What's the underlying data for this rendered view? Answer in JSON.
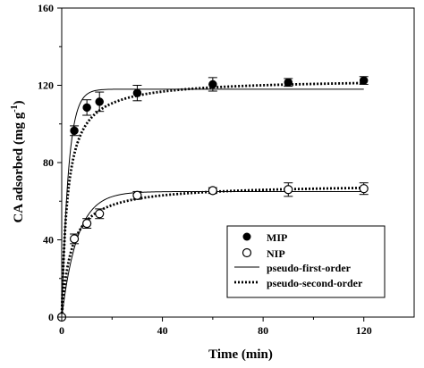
{
  "chart_data": {
    "type": "scatter",
    "title": "",
    "xlabel": "Time (min)",
    "ylabel": {
      "prefix": "CA adsorbed (mg g",
      "sup": "-1",
      "suffix": ")"
    },
    "xlim": [
      0,
      140
    ],
    "ylim": [
      0,
      160
    ],
    "xticks": [
      0,
      40,
      80,
      120
    ],
    "yticks": [
      0,
      40,
      80,
      120,
      160
    ],
    "grid": false,
    "legend_position": "bottom-right",
    "series": [
      {
        "name": "MIP",
        "marker": "filled-circle",
        "x": [
          0,
          5,
          10,
          15,
          30,
          60,
          90,
          120
        ],
        "y": [
          0,
          96.5,
          108.5,
          111.5,
          116,
          120.5,
          121.5,
          122.5
        ],
        "error": [
          0,
          2.5,
          4,
          5,
          4,
          3.5,
          2,
          2
        ]
      },
      {
        "name": "NIP",
        "marker": "open-circle",
        "x": [
          0,
          5,
          10,
          15,
          30,
          60,
          90,
          120
        ],
        "y": [
          0,
          40.5,
          48.5,
          53.5,
          63,
          65.5,
          66,
          66.5
        ],
        "error": [
          0,
          2.5,
          2.5,
          2.5,
          2,
          1.5,
          3.5,
          3
        ]
      }
    ],
    "fits": [
      {
        "name": "pseudo-first-order",
        "style": "solid",
        "curves": [
          {
            "qe": 118,
            "k": 0.38
          },
          {
            "qe": 65,
            "k": 0.16
          }
        ]
      },
      {
        "name": "pseudo-second-order",
        "style": "dotted",
        "curves": [
          {
            "qe": 123.5,
            "k": 0.0035
          },
          {
            "qe": 69,
            "k": 0.0038
          }
        ]
      }
    ],
    "colors": {
      "axis": "#000000",
      "marker": "#000000"
    }
  }
}
